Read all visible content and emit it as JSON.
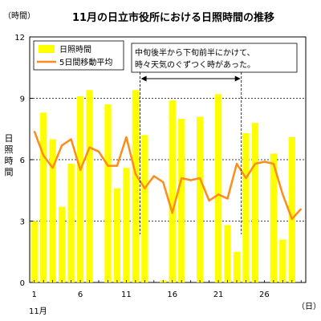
{
  "chart_data": {
    "type": "bar",
    "title": "11月の日立市役所における日照時間の推移",
    "y_unit_label": "（時間）",
    "ylabel": "日照時間",
    "x_unit_label": "（日）",
    "x_month_label": "11月",
    "ylim": [
      0,
      12
    ],
    "y_ticks": [
      0,
      3,
      6,
      9,
      12
    ],
    "x_ticks": [
      1,
      6,
      11,
      16,
      21,
      26
    ],
    "grid": "horizontal dashed",
    "legend_position": "top-left",
    "legend": [
      "日照時間",
      "5日間移動平均"
    ],
    "annotation": "中旬後半から下旬前半にかけて、時々天気のぐずつく時があった。",
    "annotation_span": [
      13,
      23
    ],
    "days": [
      1,
      2,
      3,
      4,
      5,
      6,
      7,
      8,
      9,
      10,
      11,
      12,
      13,
      14,
      15,
      16,
      17,
      18,
      19,
      20,
      21,
      22,
      23,
      24,
      25,
      26,
      27,
      28,
      29,
      30
    ],
    "series": [
      {
        "name": "日照時間",
        "type": "bar",
        "color": "#ffff00",
        "values": [
          3.0,
          8.3,
          7.0,
          3.7,
          5.8,
          9.1,
          9.4,
          0.0,
          8.7,
          4.6,
          5.6,
          9.4,
          7.2,
          0.0,
          0.1,
          8.9,
          8.0,
          0.0,
          8.1,
          0.0,
          9.2,
          2.8,
          1.5,
          7.3,
          7.8,
          0.0,
          6.3,
          2.1,
          7.1,
          0.0
        ]
      },
      {
        "name": "5日間移動平均",
        "type": "line",
        "color": "#ff8c1a",
        "values": [
          7.4,
          6.2,
          5.6,
          6.7,
          7.0,
          5.5,
          6.6,
          6.4,
          5.7,
          5.7,
          7.1,
          5.3,
          4.6,
          5.2,
          4.9,
          3.4,
          5.1,
          5.0,
          5.1,
          4.0,
          4.3,
          4.1,
          5.8,
          5.1,
          5.8,
          5.9,
          5.8,
          4.3,
          3.1,
          3.6
        ]
      }
    ]
  }
}
